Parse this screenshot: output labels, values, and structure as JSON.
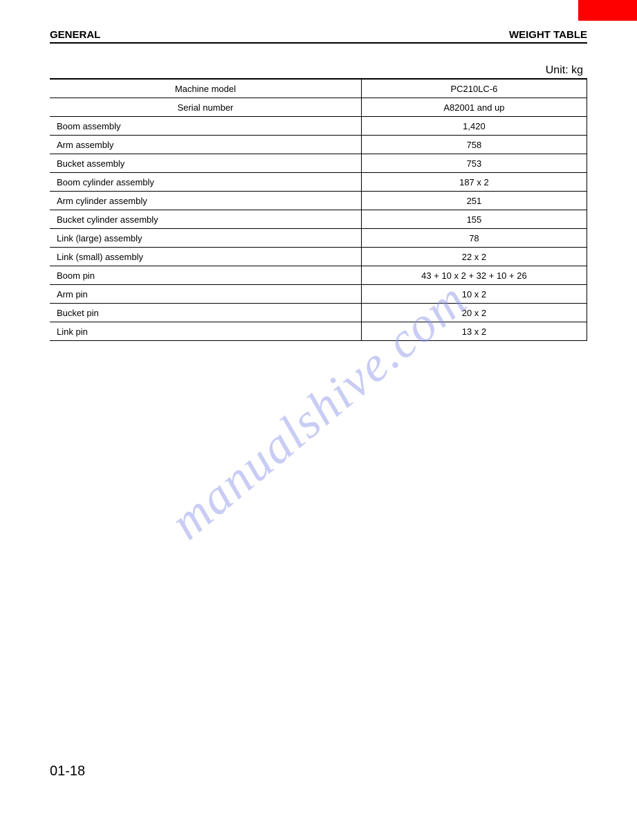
{
  "header": {
    "left": "GENERAL",
    "right": "WEIGHT TABLE"
  },
  "unit_label": "Unit: kg",
  "table": {
    "header_rows": [
      {
        "label": "Machine model",
        "value": "PC210LC-6"
      },
      {
        "label": "Serial number",
        "value": "A82001 and up"
      }
    ],
    "data_rows": [
      {
        "label": "Boom assembly",
        "value": "1,420"
      },
      {
        "label": "Arm assembly",
        "value": "758"
      },
      {
        "label": "Bucket assembly",
        "value": "753"
      },
      {
        "label": "Boom cylinder assembly",
        "value": "187 x 2"
      },
      {
        "label": "Arm cylinder assembly",
        "value": "251"
      },
      {
        "label": "Bucket cylinder assembly",
        "value": "155"
      },
      {
        "label": "Link (large) assembly",
        "value": "78"
      },
      {
        "label": "Link (small) assembly",
        "value": "22 x 2"
      },
      {
        "label": "Boom pin",
        "value": "43 + 10 x 2 + 32 + 10 + 26"
      },
      {
        "label": "Arm pin",
        "value": "10 x 2"
      },
      {
        "label": "Bucket pin",
        "value": "20 x 2"
      },
      {
        "label": "Link pin",
        "value": "13 x 2"
      }
    ]
  },
  "watermark": "manualshive.com",
  "page_number": "01-18",
  "colors": {
    "red_tab": "#ff0000",
    "watermark": "#8a8fe8",
    "text": "#000000",
    "border": "#000000",
    "background": "#ffffff"
  }
}
